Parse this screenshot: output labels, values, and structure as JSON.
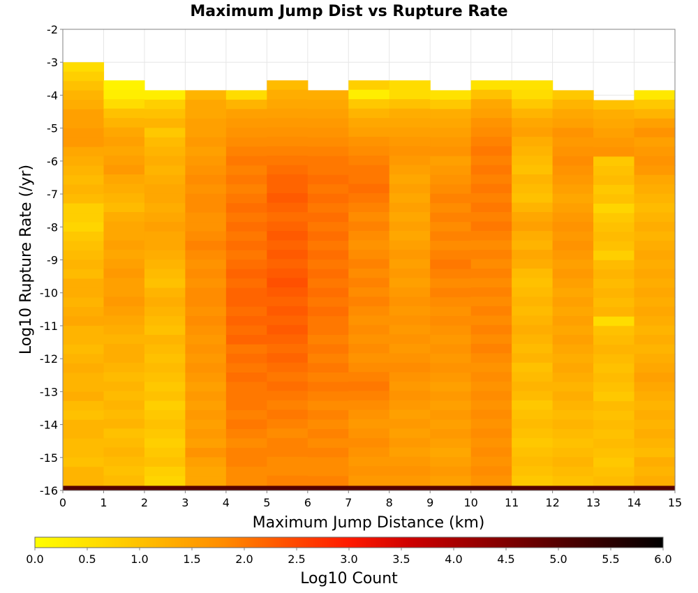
{
  "chart_data": {
    "type": "heatmap",
    "title": "Maximum Jump Dist vs Rupture Rate",
    "xlabel": "Maximum Jump Distance (km)",
    "ylabel": "Log10 Rupture Rate (/yr)",
    "xlim": [
      0,
      15
    ],
    "ylim": [
      -16,
      -2
    ],
    "x_ticks": [
      "0",
      "1",
      "2",
      "3",
      "4",
      "5",
      "6",
      "7",
      "8",
      "9",
      "10",
      "11",
      "12",
      "13",
      "14",
      "15"
    ],
    "y_ticks": [
      "-2",
      "-3",
      "-4",
      "-5",
      "-6",
      "-7",
      "-8",
      "-9",
      "-10",
      "-11",
      "-12",
      "-13",
      "-14",
      "-15",
      "-16"
    ],
    "bin_width_x": 1,
    "bin_height_y": 0.2857,
    "columns": [
      {
        "x_start": 0,
        "top_y": -3.0,
        "levels": [
          0.6,
          0.8,
          1.0,
          1.2,
          1.3,
          1.5,
          1.5,
          1.6,
          1.6,
          1.4,
          1.3,
          1.2,
          1.1,
          1.2,
          1.1,
          0.8,
          0.8,
          0.7,
          0.9,
          1.0,
          1.1,
          1.2,
          1.1,
          1.3,
          1.3,
          1.2,
          1.3,
          1.4,
          1.2,
          1.2,
          1.1,
          1.2,
          1.3,
          1.2,
          1.2,
          1.3,
          1.1,
          1.0,
          1.2,
          1.2,
          1.1,
          1.1,
          1.0,
          1.2,
          1.2
        ]
      },
      {
        "x_start": 1,
        "top_y": -3.55,
        "levels": [
          0.2,
          0.3,
          0.6,
          1.0,
          1.2,
          1.4,
          1.5,
          1.4,
          1.5,
          1.6,
          1.4,
          1.3,
          1.2,
          1.1,
          1.3,
          1.4,
          1.4,
          1.5,
          1.4,
          1.5,
          1.6,
          1.5,
          1.5,
          1.6,
          1.5,
          1.4,
          1.3,
          1.2,
          1.3,
          1.3,
          1.2,
          1.1,
          1.2,
          1.1,
          1.2,
          1.1,
          1.2,
          1.0,
          1.1,
          1.2,
          1.1,
          1.0,
          1.1
        ]
      },
      {
        "x_start": 2,
        "top_y": -3.85,
        "levels": [
          0.3,
          0.8,
          1.0,
          1.2,
          0.9,
          1.1,
          1.2,
          1.3,
          1.2,
          1.3,
          1.4,
          1.4,
          1.3,
          1.4,
          1.5,
          1.4,
          1.4,
          1.3,
          1.2,
          1.1,
          1.0,
          1.2,
          1.3,
          1.2,
          1.1,
          1.0,
          1.2,
          1.1,
          1.0,
          1.1,
          1.0,
          0.9,
          1.0,
          0.8,
          0.9,
          1.0,
          0.9,
          0.8,
          0.9,
          1.0,
          0.8,
          0.7
        ]
      },
      {
        "x_start": 3,
        "top_y": -3.85,
        "levels": [
          1.2,
          1.4,
          1.4,
          1.5,
          1.5,
          1.6,
          1.5,
          1.6,
          1.7,
          1.8,
          1.7,
          1.8,
          1.8,
          1.7,
          1.7,
          1.8,
          1.9,
          1.8,
          1.7,
          1.8,
          1.7,
          1.8,
          1.8,
          1.7,
          1.8,
          1.7,
          1.6,
          1.7,
          1.6,
          1.7,
          1.6,
          1.5,
          1.6,
          1.5,
          1.6,
          1.5,
          1.6,
          1.5,
          1.7,
          1.5,
          1.4,
          1.4
        ]
      },
      {
        "x_start": 4,
        "top_y": -3.85,
        "levels": [
          0.6,
          1.2,
          1.5,
          1.6,
          1.7,
          1.8,
          1.9,
          2.0,
          1.9,
          2.0,
          1.9,
          2.0,
          2.1,
          2.0,
          2.1,
          2.0,
          2.1,
          2.0,
          2.1,
          2.2,
          2.1,
          2.2,
          2.2,
          2.1,
          2.2,
          2.1,
          2.2,
          2.0,
          2.1,
          2.0,
          2.1,
          2.0,
          2.0,
          2.0,
          1.9,
          2.0,
          1.9,
          1.8,
          1.9,
          1.9,
          1.8,
          1.8
        ]
      },
      {
        "x_start": 5,
        "top_y": -3.55,
        "levels": [
          1.1,
          1.3,
          1.4,
          1.5,
          1.6,
          1.7,
          1.8,
          1.9,
          2.0,
          2.1,
          2.2,
          2.2,
          2.3,
          2.2,
          2.1,
          2.2,
          2.3,
          2.2,
          2.3,
          2.2,
          2.3,
          2.4,
          2.3,
          2.2,
          2.3,
          2.2,
          2.3,
          2.2,
          2.1,
          2.2,
          2.1,
          2.0,
          2.1,
          2.0,
          1.9,
          2.0,
          1.9,
          1.8,
          1.9,
          1.9,
          1.8,
          1.8,
          1.9
        ]
      },
      {
        "x_start": 6,
        "top_y": -3.85,
        "levels": [
          1.3,
          1.4,
          1.5,
          1.6,
          1.7,
          1.8,
          1.9,
          2.0,
          2.0,
          2.1,
          2.0,
          2.1,
          2.0,
          2.1,
          2.0,
          2.1,
          2.0,
          2.1,
          2.0,
          2.1,
          2.0,
          2.1,
          2.0,
          2.1,
          2.0,
          2.0,
          1.9,
          2.0,
          1.9,
          2.0,
          1.9,
          2.0,
          1.9,
          1.8,
          1.9,
          1.8,
          1.9,
          1.8,
          1.9,
          1.8,
          1.8,
          1.9
        ]
      },
      {
        "x_start": 7,
        "top_y": -3.55,
        "levels": [
          0.8,
          0.3,
          0.9,
          1.2,
          1.4,
          1.5,
          1.7,
          1.8,
          1.9,
          2.0,
          2.0,
          2.1,
          2.0,
          1.9,
          1.8,
          1.9,
          1.8,
          1.7,
          1.8,
          1.9,
          1.8,
          1.9,
          1.8,
          1.9,
          1.8,
          1.7,
          1.8,
          1.7,
          1.8,
          1.7,
          1.8,
          1.9,
          2.0,
          1.9,
          1.8,
          1.7,
          1.6,
          1.7,
          1.8,
          1.7,
          1.6,
          1.7,
          1.6
        ]
      },
      {
        "x_start": 8,
        "top_y": -3.55,
        "levels": [
          0.6,
          0.6,
          1.0,
          1.3,
          1.4,
          1.5,
          1.6,
          1.7,
          1.6,
          1.5,
          1.4,
          1.5,
          1.4,
          1.5,
          1.4,
          1.5,
          1.4,
          1.5,
          1.6,
          1.5,
          1.6,
          1.5,
          1.6,
          1.7,
          1.6,
          1.7,
          1.6,
          1.7,
          1.6,
          1.7,
          1.8,
          1.7,
          1.6,
          1.7,
          1.6,
          1.5,
          1.6,
          1.5,
          1.6,
          1.5,
          1.6,
          1.7,
          1.6
        ]
      },
      {
        "x_start": 9,
        "top_y": -3.85,
        "levels": [
          0.5,
          0.9,
          1.3,
          1.4,
          1.5,
          1.6,
          1.7,
          1.5,
          1.6,
          1.7,
          1.8,
          1.9,
          1.8,
          1.9,
          1.8,
          1.9,
          1.8,
          1.9,
          2.0,
          1.9,
          1.8,
          1.9,
          1.8,
          1.7,
          1.8,
          1.7,
          1.6,
          1.7,
          1.6,
          1.7,
          1.6,
          1.5,
          1.6,
          1.5,
          1.6,
          1.5,
          1.6,
          1.5,
          1.4,
          1.5,
          1.6,
          1.5
        ]
      },
      {
        "x_start": 10,
        "top_y": -3.55,
        "levels": [
          0.5,
          1.0,
          1.4,
          1.5,
          1.7,
          1.8,
          1.9,
          2.0,
          1.9,
          2.0,
          1.9,
          2.0,
          1.9,
          2.0,
          1.9,
          2.0,
          1.9,
          1.8,
          1.9,
          1.8,
          1.9,
          1.8,
          1.9,
          1.8,
          1.9,
          1.8,
          1.9,
          1.8,
          1.9,
          1.8,
          1.7,
          1.8,
          1.7,
          1.8,
          1.7,
          1.8,
          1.7,
          1.8,
          1.7,
          1.8,
          1.7,
          1.8,
          1.7
        ]
      },
      {
        "x_start": 11,
        "top_y": -3.55,
        "levels": [
          0.5,
          0.6,
          0.9,
          1.2,
          1.4,
          1.5,
          1.3,
          1.2,
          1.1,
          1.0,
          1.2,
          1.1,
          1.0,
          1.2,
          1.4,
          1.5,
          1.3,
          1.2,
          1.4,
          1.3,
          1.1,
          1.0,
          1.1,
          1.2,
          1.1,
          1.2,
          1.3,
          1.2,
          1.1,
          1.2,
          1.0,
          1.1,
          1.2,
          1.1,
          0.9,
          1.0,
          1.1,
          1.0,
          0.9,
          1.0,
          1.1,
          1.0,
          0.9
        ]
      },
      {
        "x_start": 12,
        "top_y": -3.85,
        "levels": [
          0.9,
          1.2,
          1.4,
          1.5,
          1.7,
          1.6,
          1.7,
          1.8,
          1.7,
          1.6,
          1.5,
          1.4,
          1.5,
          1.6,
          1.7,
          1.6,
          1.7,
          1.6,
          1.5,
          1.6,
          1.5,
          1.4,
          1.5,
          1.4,
          1.5,
          1.4,
          1.5,
          1.4,
          1.3,
          1.4,
          1.3,
          1.2,
          1.3,
          1.2,
          1.1,
          1.2,
          1.1,
          1.0,
          1.1,
          1.2,
          1.1,
          1.0
        ]
      },
      {
        "x_start": 13,
        "top_y": -4.15,
        "levels": [
          1.0,
          1.3,
          1.4,
          1.5,
          1.6,
          1.7,
          0.9,
          1.0,
          1.1,
          0.9,
          1.0,
          0.7,
          0.9,
          1.0,
          1.1,
          1.0,
          0.8,
          1.1,
          1.2,
          1.1,
          1.2,
          1.1,
          1.2,
          0.6,
          1.0,
          1.1,
          1.2,
          1.1,
          1.0,
          1.1,
          1.0,
          0.9,
          1.1,
          1.0,
          1.1,
          1.0,
          1.1,
          1.0,
          0.9,
          1.0,
          1.1
        ]
      },
      {
        "x_start": 14,
        "top_y": -3.85,
        "levels": [
          0.4,
          0.9,
          1.2,
          1.5,
          1.7,
          1.5,
          1.6,
          1.7,
          1.6,
          1.4,
          1.3,
          1.2,
          1.1,
          1.2,
          1.3,
          1.2,
          1.3,
          1.4,
          1.3,
          1.4,
          1.3,
          1.4,
          1.3,
          1.4,
          1.3,
          1.2,
          1.3,
          1.2,
          1.3,
          1.4,
          1.5,
          1.4,
          1.3,
          1.2,
          1.3,
          1.2,
          1.3,
          1.2,
          1.1,
          1.3,
          1.2,
          1.3
        ]
      }
    ],
    "bottom_row": {
      "y_range": [
        -16,
        -15.86
      ],
      "level": 5.0
    },
    "colorbar": {
      "label": "Log10 Count",
      "range": [
        0,
        6
      ],
      "ticks": [
        "0.0",
        "0.5",
        "1.0",
        "1.5",
        "2.0",
        "2.5",
        "3.0",
        "3.5",
        "4.0",
        "4.5",
        "5.0",
        "5.5",
        "6.0"
      ],
      "stops": [
        {
          "v": 0.0,
          "color": "#ffff00"
        },
        {
          "v": 0.6,
          "color": "#ffdc00"
        },
        {
          "v": 1.2,
          "color": "#ffb400"
        },
        {
          "v": 1.8,
          "color": "#ff8c00"
        },
        {
          "v": 2.4,
          "color": "#ff5000"
        },
        {
          "v": 3.0,
          "color": "#ff1a00"
        },
        {
          "v": 3.6,
          "color": "#cc0000"
        },
        {
          "v": 4.2,
          "color": "#990000"
        },
        {
          "v": 4.8,
          "color": "#660000"
        },
        {
          "v": 5.4,
          "color": "#330000"
        },
        {
          "v": 6.0,
          "color": "#000000"
        }
      ]
    }
  }
}
